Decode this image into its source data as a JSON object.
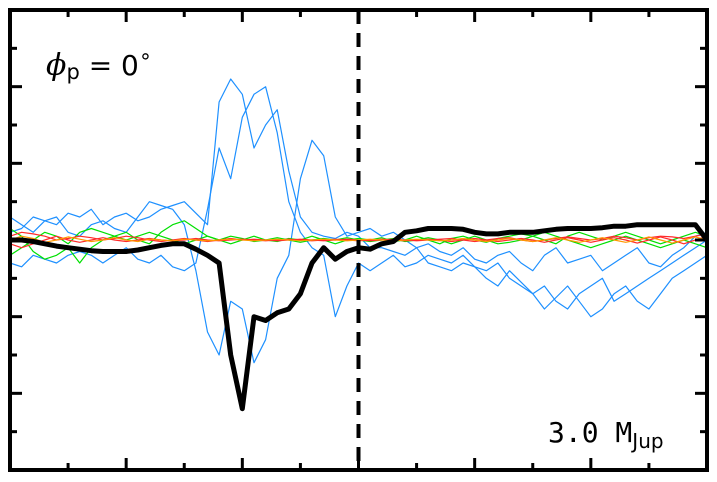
{
  "chart_data": {
    "type": "line",
    "title": "",
    "xlabel": "",
    "ylabel": "",
    "xlim": [
      -3,
      3
    ],
    "ylim": [
      -3,
      3
    ],
    "grid": false,
    "tick_labels_visible": false,
    "annotations": {
      "phase": {
        "symbol": "ϕ",
        "subscript": "p",
        "equals": " = 0",
        "degree": "∘"
      },
      "mass": {
        "value": "3.0 M",
        "subscript": "Jup"
      }
    },
    "vertical_marker": {
      "x": 0.0,
      "style": "dashed",
      "color": "#000000"
    },
    "x": [
      -3.0,
      -2.9,
      -2.8,
      -2.7,
      -2.6,
      -2.5,
      -2.4,
      -2.3,
      -2.2,
      -2.1,
      -2.0,
      -1.9,
      -1.8,
      -1.7,
      -1.6,
      -1.5,
      -1.4,
      -1.3,
      -1.2,
      -1.1,
      -1.0,
      -0.9,
      -0.8,
      -0.7,
      -0.6,
      -0.5,
      -0.4,
      -0.3,
      -0.2,
      -0.1,
      0.0,
      0.1,
      0.2,
      0.3,
      0.4,
      0.5,
      0.6,
      0.7,
      0.8,
      0.9,
      1.0,
      1.1,
      1.2,
      1.3,
      1.4,
      1.5,
      1.6,
      1.7,
      1.8,
      1.9,
      2.0,
      2.1,
      2.2,
      2.3,
      2.4,
      2.5,
      2.6,
      2.7,
      2.8,
      2.9,
      3.0
    ],
    "series": [
      {
        "color": "#000000",
        "style": "thick",
        "y": [
          0.0,
          0.0,
          -0.02,
          -0.05,
          -0.08,
          -0.1,
          -0.12,
          -0.14,
          -0.15,
          -0.15,
          -0.15,
          -0.13,
          -0.1,
          -0.07,
          -0.05,
          -0.05,
          -0.12,
          -0.2,
          -0.3,
          -1.5,
          -2.2,
          -1.0,
          -1.05,
          -0.95,
          -0.9,
          -0.7,
          -0.3,
          -0.1,
          -0.25,
          -0.15,
          -0.1,
          -0.12,
          -0.05,
          -0.02,
          0.1,
          0.12,
          0.15,
          0.15,
          0.15,
          0.14,
          0.1,
          0.08,
          0.08,
          0.1,
          0.1,
          0.1,
          0.12,
          0.14,
          0.15,
          0.15,
          0.15,
          0.16,
          0.18,
          0.18,
          0.2,
          0.2,
          0.2,
          0.2,
          0.2,
          0.2,
          0.0
        ]
      },
      {
        "color": "#1e90ff",
        "style": "thin",
        "y": [
          0.1,
          0.15,
          0.3,
          0.25,
          0.2,
          0.35,
          0.3,
          0.4,
          0.2,
          0.3,
          0.35,
          0.25,
          0.3,
          0.4,
          0.45,
          0.5,
          0.35,
          0.2,
          1.8,
          2.1,
          1.9,
          1.2,
          1.5,
          1.7,
          0.9,
          0.3,
          0.1,
          0.05,
          0.02,
          0.1,
          0.05,
          -0.1,
          -0.1,
          -0.15,
          -0.2,
          -0.1,
          -0.3,
          -0.35,
          -0.4,
          -0.3,
          -0.35,
          -0.4,
          -0.3,
          -0.5,
          -0.6,
          -0.7,
          -0.6,
          -0.8,
          -0.9,
          -0.7,
          -0.6,
          -0.5,
          -0.8,
          -0.7,
          -0.6,
          -0.5,
          -0.4,
          -0.3,
          -0.2,
          -0.1,
          0.0
        ]
      },
      {
        "color": "#1e90ff",
        "style": "thin",
        "y": [
          -0.3,
          -0.35,
          -0.2,
          -0.25,
          -0.3,
          -0.2,
          -0.15,
          -0.2,
          -0.3,
          -0.2,
          -0.1,
          -0.25,
          -0.3,
          -0.2,
          -0.35,
          -0.4,
          -0.3,
          0.4,
          1.2,
          0.8,
          1.6,
          1.9,
          2.0,
          1.4,
          0.5,
          0.1,
          -0.1,
          -0.2,
          -1.0,
          -0.6,
          -0.3,
          -0.4,
          -0.3,
          -0.2,
          -0.35,
          -0.3,
          -0.2,
          -0.25,
          -0.3,
          -0.2,
          -0.35,
          -0.5,
          -0.6,
          -0.4,
          -0.55,
          -0.7,
          -0.9,
          -0.75,
          -0.6,
          -0.8,
          -1.0,
          -0.9,
          -0.7,
          -0.6,
          -0.8,
          -0.9,
          -0.7,
          -0.5,
          -0.4,
          -0.3,
          -0.2
        ]
      },
      {
        "color": "#1e90ff",
        "style": "thin",
        "y": [
          0.3,
          0.2,
          0.1,
          0.25,
          0.3,
          0.1,
          0.05,
          0.2,
          0.25,
          0.15,
          0.1,
          0.3,
          0.5,
          0.45,
          0.4,
          0.2,
          -0.4,
          -1.2,
          -1.5,
          -0.8,
          -0.9,
          -1.6,
          -1.3,
          -0.5,
          -0.2,
          0.8,
          1.3,
          1.1,
          0.3,
          0.05,
          0.1,
          0.15,
          0.05,
          0.1,
          0.0,
          -0.1,
          -0.05,
          -0.15,
          -0.2,
          -0.1,
          -0.25,
          -0.3,
          -0.2,
          -0.15,
          -0.3,
          -0.4,
          -0.2,
          -0.1,
          -0.3,
          -0.25,
          -0.2,
          -0.4,
          -0.3,
          -0.2,
          -0.1,
          -0.3,
          -0.35,
          -0.2,
          -0.1,
          0.05,
          0.1
        ]
      },
      {
        "color": "#00e000",
        "style": "thin",
        "y": [
          -0.2,
          -0.1,
          0.0,
          0.1,
          0.05,
          -0.05,
          0.1,
          0.15,
          0.1,
          0.05,
          0.0,
          0.05,
          0.1,
          0.05,
          0.0,
          -0.05,
          0.0,
          0.05,
          0.0,
          -0.05,
          0.0,
          0.05,
          0.0,
          -0.02,
          0.02,
          0.0,
          0.05,
          0.0,
          -0.05,
          0.0,
          0.02,
          0.0,
          0.03,
          -0.02,
          0.0,
          0.05,
          0.0,
          -0.05,
          0.02,
          0.05,
          0.0,
          -0.03,
          0.02,
          0.05,
          0.08,
          0.05,
          0.0,
          -0.05,
          0.05,
          0.1,
          0.05,
          0.0,
          0.05,
          0.1,
          0.05,
          0.0,
          -0.05,
          0.0,
          0.05,
          0.1,
          0.05
        ]
      },
      {
        "color": "#00e000",
        "style": "thin",
        "y": [
          0.15,
          0.05,
          -0.15,
          -0.25,
          -0.2,
          -0.1,
          -0.3,
          -0.1,
          0.0,
          0.05,
          0.1,
          0.0,
          -0.05,
          0.1,
          0.2,
          0.25,
          0.15,
          0.05,
          0.0,
          0.05,
          0.02,
          -0.02,
          0.0,
          0.03,
          0.0,
          -0.03,
          0.0,
          0.02,
          0.0,
          0.03,
          0.0,
          -0.02,
          0.0,
          0.02,
          -0.02,
          0.0,
          0.03,
          0.0,
          -0.05,
          0.0,
          0.05,
          0.0,
          -0.05,
          -0.03,
          0.0,
          0.05,
          0.1,
          0.05,
          0.0,
          -0.05,
          -0.1,
          -0.05,
          0.0,
          0.05,
          0.0,
          -0.05,
          -0.1,
          -0.05,
          0.0,
          -0.05,
          -0.1
        ]
      },
      {
        "color": "#ff2a2a",
        "style": "thin",
        "y": [
          0.05,
          0.1,
          0.08,
          0.05,
          0.0,
          0.02,
          0.05,
          0.03,
          0.0,
          0.02,
          0.05,
          0.03,
          0.0,
          -0.02,
          0.0,
          0.02,
          0.0,
          -0.02,
          0.0,
          0.02,
          0.0,
          0.01,
          0.0,
          -0.01,
          0.0,
          0.01,
          0.0,
          -0.01,
          0.0,
          0.01,
          0.0,
          -0.01,
          0.0,
          0.01,
          0.0,
          -0.01,
          0.0,
          0.01,
          0.02,
          0.0,
          -0.02,
          0.0,
          0.02,
          0.03,
          0.0,
          -0.02,
          0.0,
          0.02,
          0.04,
          0.02,
          0.0,
          0.02,
          0.05,
          0.03,
          0.0,
          0.03,
          0.05,
          0.04,
          0.02,
          0.05,
          0.08
        ]
      },
      {
        "color": "#ff2a2a",
        "style": "thin",
        "y": [
          -0.05,
          -0.1,
          -0.05,
          0.0,
          0.05,
          0.0,
          -0.03,
          0.0,
          0.03,
          0.0,
          -0.02,
          0.0,
          0.02,
          0.0,
          -0.01,
          0.0,
          0.02,
          0.0,
          -0.01,
          0.0,
          0.01,
          0.0,
          -0.01,
          0.0,
          0.01,
          0.0,
          -0.01,
          0.0,
          0.01,
          0.0,
          -0.01,
          0.0,
          0.01,
          0.0,
          -0.01,
          0.0,
          0.01,
          0.0,
          -0.02,
          0.0,
          0.02,
          0.0,
          -0.02,
          0.0,
          0.02,
          0.0,
          -0.03,
          0.0,
          0.03,
          0.0,
          -0.03,
          0.0,
          0.03,
          0.0,
          -0.04,
          0.0,
          0.04,
          0.0,
          -0.05,
          0.0,
          0.05
        ]
      },
      {
        "color": "#ff9900",
        "style": "thin",
        "y": [
          0.0,
          0.05,
          0.02,
          -0.03,
          0.0,
          0.04,
          0.01,
          -0.02,
          0.0,
          0.03,
          0.0,
          -0.02,
          0.01,
          0.0,
          -0.01,
          0.01,
          0.0,
          -0.01,
          0.0,
          0.01,
          0.0,
          -0.01,
          0.0,
          0.01,
          0.0,
          -0.01,
          0.0,
          0.01,
          0.0,
          -0.01,
          0.0,
          0.01,
          0.0,
          -0.01,
          0.0,
          0.01,
          0.0,
          -0.01,
          0.0,
          0.02,
          0.0,
          -0.02,
          0.0,
          0.02,
          0.0,
          -0.02,
          0.0,
          0.03,
          0.0,
          -0.03,
          0.0,
          0.03,
          0.0,
          -0.03,
          0.0,
          0.04,
          0.0,
          -0.04,
          0.0,
          0.04,
          0.0
        ]
      }
    ]
  }
}
